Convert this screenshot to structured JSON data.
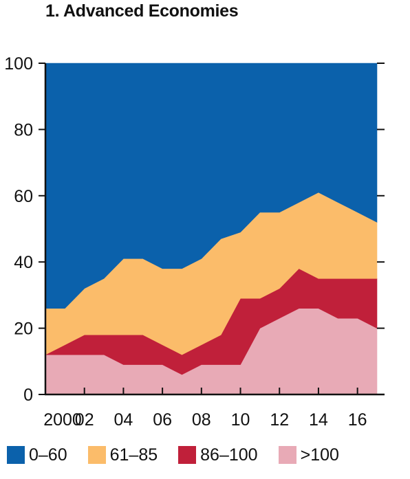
{
  "chart_data": {
    "type": "area",
    "stacked": true,
    "title": "1. Advanced Economies",
    "x": [
      2000,
      2001,
      2002,
      2003,
      2004,
      2005,
      2006,
      2007,
      2008,
      2009,
      2010,
      2011,
      2012,
      2013,
      2014,
      2015,
      2016,
      2017
    ],
    "x_tick_values": [
      2000,
      2002,
      2004,
      2006,
      2008,
      2010,
      2012,
      2014,
      2016
    ],
    "x_tick_labels": [
      "2000",
      "02",
      "04",
      "06",
      "08",
      "10",
      "12",
      "14",
      "16"
    ],
    "ylim": [
      0,
      100
    ],
    "y_ticks": [
      0,
      20,
      40,
      60,
      80,
      100
    ],
    "series": [
      {
        "name": ">100",
        "color": "#e8aab6",
        "values": [
          12,
          12,
          12,
          12,
          9,
          9,
          9,
          6,
          9,
          9,
          9,
          20,
          23,
          26,
          26,
          23,
          23,
          20
        ]
      },
      {
        "name": "86–100",
        "color": "#c0203a",
        "values": [
          0,
          3,
          6,
          6,
          9,
          9,
          6,
          6,
          6,
          9,
          20,
          9,
          9,
          12,
          9,
          12,
          12,
          15
        ]
      },
      {
        "name": "61–85",
        "color": "#fbbc6a",
        "values": [
          14,
          11,
          14,
          17,
          23,
          23,
          23,
          26,
          26,
          29,
          20,
          26,
          23,
          20,
          26,
          23,
          20,
          17
        ]
      },
      {
        "name": "0–60",
        "color": "#0b61ab",
        "values": [
          74,
          74,
          68,
          65,
          59,
          59,
          62,
          62,
          59,
          53,
          51,
          45,
          45,
          42,
          39,
          42,
          45,
          48
        ]
      }
    ],
    "grid": false,
    "legend_position": "bottom"
  },
  "legend_order": [
    3,
    2,
    1,
    0
  ]
}
